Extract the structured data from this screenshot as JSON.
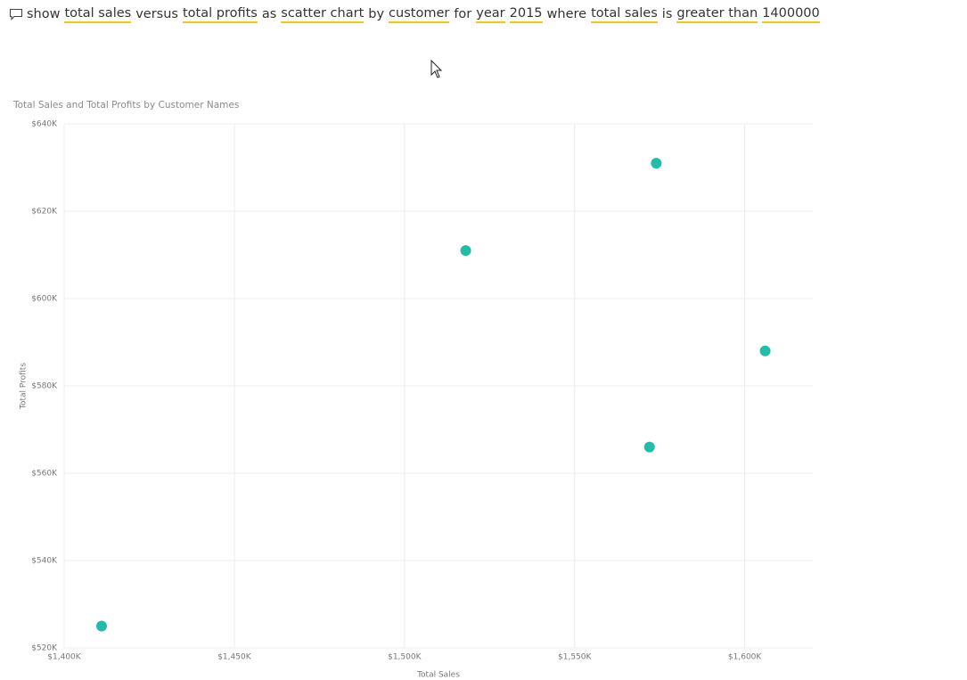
{
  "query": {
    "segments": [
      {
        "text": "show",
        "underlined": false
      },
      {
        "text": "total sales",
        "underlined": true
      },
      {
        "text": "versus",
        "underlined": false
      },
      {
        "text": "total profits",
        "underlined": true
      },
      {
        "text": "as",
        "underlined": false
      },
      {
        "text": "scatter chart",
        "underlined": true
      },
      {
        "text": "by",
        "underlined": false
      },
      {
        "text": "customer",
        "underlined": true
      },
      {
        "text": "for",
        "underlined": false
      },
      {
        "text": "year",
        "underlined": true
      },
      {
        "text": "2015",
        "underlined": true
      },
      {
        "text": "where",
        "underlined": false
      },
      {
        "text": "total sales",
        "underlined": true
      },
      {
        "text": "is",
        "underlined": false
      },
      {
        "text": "greater than",
        "underlined": true
      },
      {
        "text": "1400000",
        "underlined": true
      }
    ]
  },
  "chart_data": {
    "type": "scatter",
    "title": "Total Sales and Total Profits by Customer Names",
    "x_label": "Total Sales",
    "y_label": "Total Profits",
    "color": "#21bda9",
    "grid": true,
    "x": [
      1411000,
      1518000,
      1574000,
      1606000,
      1572000
    ],
    "values": [
      525000,
      611000,
      631000,
      588000,
      566000
    ],
    "xlim": [
      1400000,
      1620000
    ],
    "ylim": [
      520000,
      640000
    ],
    "xticks": [
      {
        "value": 1400000,
        "label": "$1,400K"
      },
      {
        "value": 1450000,
        "label": "$1,450K"
      },
      {
        "value": 1500000,
        "label": "$1,500K"
      },
      {
        "value": 1550000,
        "label": "$1,550K"
      },
      {
        "value": 1600000,
        "label": "$1,600K"
      }
    ],
    "yticks": [
      {
        "value": 520000,
        "label": "$520K"
      },
      {
        "value": 540000,
        "label": "$540K"
      },
      {
        "value": 560000,
        "label": "$560K"
      },
      {
        "value": 580000,
        "label": "$580K"
      },
      {
        "value": 600000,
        "label": "$600K"
      },
      {
        "value": 620000,
        "label": "$620K"
      },
      {
        "value": 640000,
        "label": "$640K"
      }
    ]
  }
}
